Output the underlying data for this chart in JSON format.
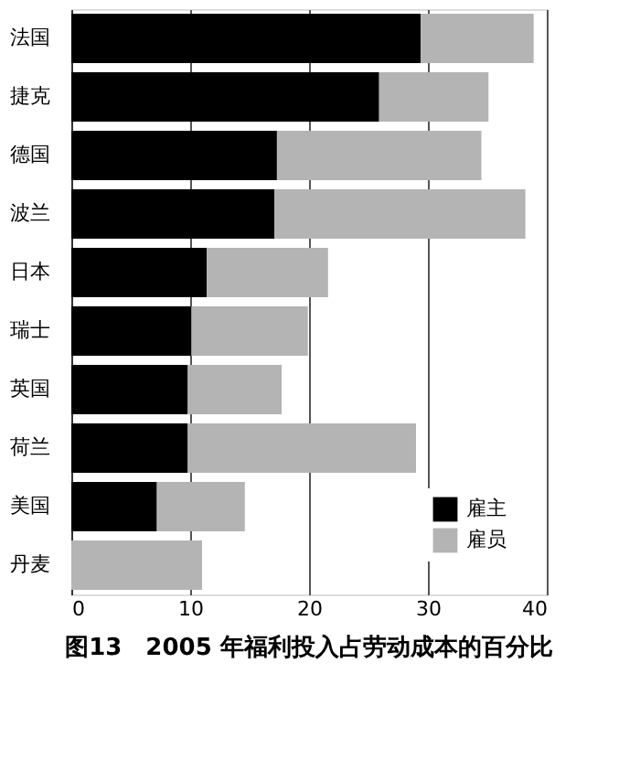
{
  "chart_data": {
    "type": "bar",
    "orientation": "horizontal",
    "stacked": true,
    "title": "图13　2005 年福利投入占劳动成本的百分比",
    "categories": [
      "法国",
      "捷克",
      "德国",
      "波兰",
      "日本",
      "瑞士",
      "英国",
      "荷兰",
      "美国",
      "丹麦"
    ],
    "series": [
      {
        "name": "雇主",
        "color": "#000000",
        "values": [
          29.4,
          25.9,
          17.3,
          17.1,
          11.4,
          10.1,
          9.8,
          9.8,
          7.2,
          0
        ]
      },
      {
        "name": "雇员",
        "color": "#b4b4b4",
        "values": [
          9.5,
          9.2,
          17.2,
          21.1,
          10.2,
          9.8,
          7.9,
          19.2,
          7.4,
          11.0
        ]
      }
    ],
    "xlim": [
      0,
      40
    ],
    "xticks": [
      0,
      10,
      20,
      30,
      40
    ],
    "grid": "x",
    "legend": "bottom right"
  }
}
